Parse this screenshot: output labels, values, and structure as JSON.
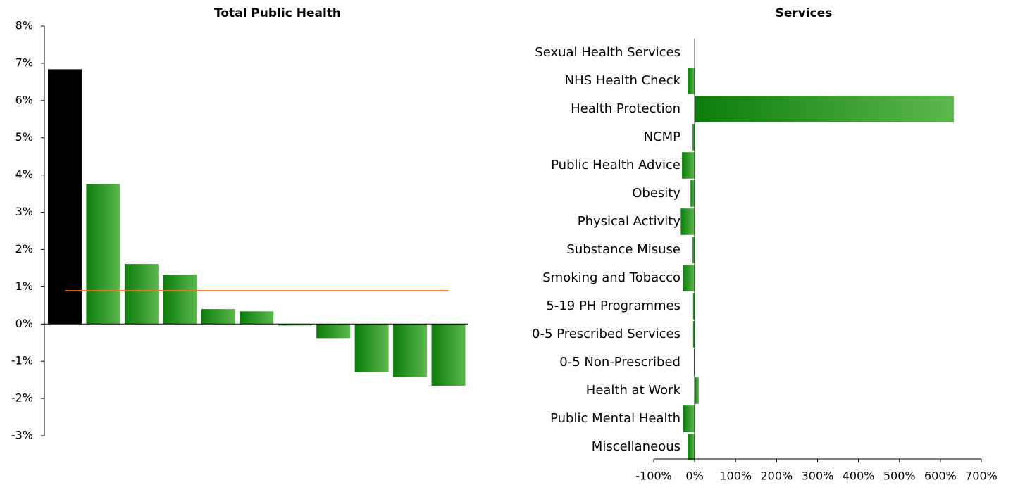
{
  "chart_data": [
    {
      "type": "bar",
      "title": "Total Public Health",
      "categories": [
        null,
        null,
        null,
        null,
        null,
        null,
        null,
        null,
        null,
        null,
        null
      ],
      "values": [
        6.84,
        3.76,
        1.61,
        1.32,
        0.4,
        0.34,
        -0.04,
        -0.38,
        -1.29,
        -1.42,
        -1.66
      ],
      "colors": [
        "#000000",
        [
          "#0b7d0b",
          "#5cb84c"
        ],
        [
          "#0b7d0b",
          "#5cb84c"
        ],
        [
          "#0b7d0b",
          "#5cb84c"
        ],
        [
          "#0b7d0b",
          "#5cb84c"
        ],
        [
          "#0b7d0b",
          "#5cb84c"
        ],
        [
          "#0b7d0b",
          "#5cb84c"
        ],
        [
          "#0b7d0b",
          "#5cb84c"
        ],
        [
          "#0b7d0b",
          "#5cb84c"
        ],
        [
          "#0b7d0b",
          "#5cb84c"
        ],
        [
          "#0b7d0b",
          "#5cb84c"
        ]
      ],
      "reference_line": {
        "value": 0.89,
        "color": "#e8761e"
      },
      "ylim": [
        -3,
        8
      ],
      "yticks": [
        {
          "value": 8,
          "label": "8%"
        },
        {
          "value": 7,
          "label": "7%"
        },
        {
          "value": 6,
          "label": "6%"
        },
        {
          "value": 5,
          "label": "5%"
        },
        {
          "value": 4,
          "label": "4%"
        },
        {
          "value": 3,
          "label": "3%"
        },
        {
          "value": 2,
          "label": "2%"
        },
        {
          "value": 1,
          "label": "1%"
        },
        {
          "value": 0,
          "label": "0%"
        },
        {
          "value": -1,
          "label": "-1%"
        },
        {
          "value": -2,
          "label": "-2%"
        },
        {
          "value": -3,
          "label": "-3%"
        }
      ]
    },
    {
      "type": "barh",
      "title": "Services",
      "categories": [
        "Sexual Health Services",
        "NHS Health Check",
        "Health Protection",
        "NCMP",
        "Public Health Advice",
        "Obesity",
        "Physical Activity",
        "Substance Misuse",
        "Smoking and Tobacco",
        "5-19 PH Programmes",
        "0-5 Prescribed Services",
        "0-5 Non-Prescribed",
        "Health at Work",
        "Public Mental Health",
        "Miscellaneous"
      ],
      "values": [
        0,
        -17,
        633,
        -5,
        -31,
        -10,
        -34,
        -5,
        -29,
        -4,
        -4,
        -2,
        10,
        -28,
        -17
      ],
      "color": [
        "#0b7d0b",
        "#5cb84c"
      ],
      "xlim": [
        -100,
        700
      ],
      "xticks": [
        {
          "value": -100,
          "label": "-100%"
        },
        {
          "value": 0,
          "label": "0%"
        },
        {
          "value": 100,
          "label": "100%"
        },
        {
          "value": 200,
          "label": "200%"
        },
        {
          "value": 300,
          "label": "300%"
        },
        {
          "value": 400,
          "label": "400%"
        },
        {
          "value": 500,
          "label": "500%"
        },
        {
          "value": 600,
          "label": "600%"
        },
        {
          "value": 700,
          "label": "700%"
        }
      ]
    }
  ]
}
